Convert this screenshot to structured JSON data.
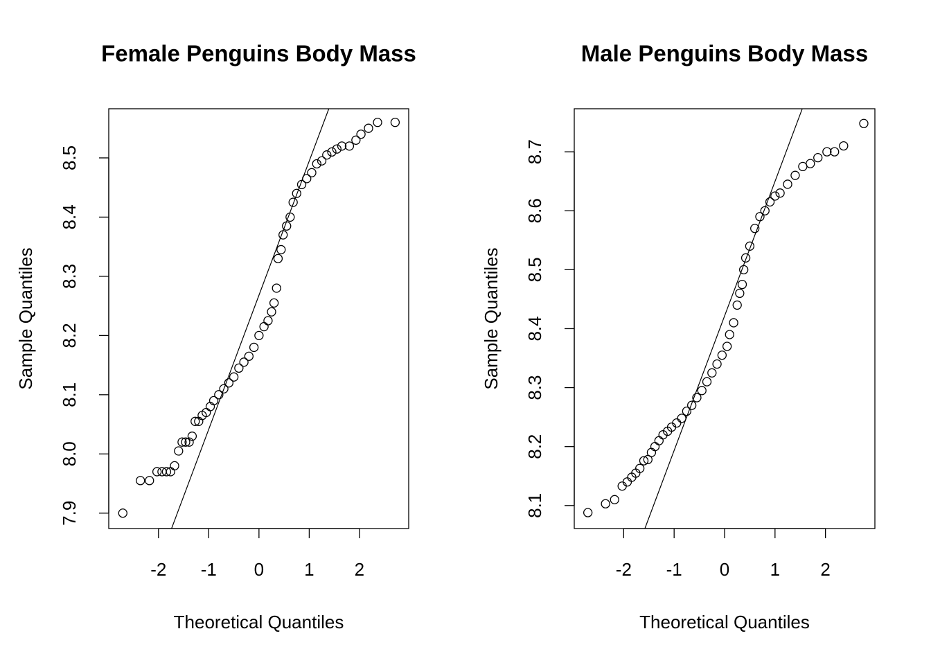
{
  "chart_data": [
    {
      "type": "scatter",
      "title": "Female Penguins Body Mass",
      "xlabel": "Theoretical Quantiles",
      "ylabel": "Sample Quantiles",
      "color": "#000000",
      "xlim": [
        -2.99,
        2.98
      ],
      "ylim": [
        7.874,
        8.583
      ],
      "xticks": [
        -2,
        -1,
        0,
        1,
        2
      ],
      "yticks": [
        7.9,
        {
          "value": 8,
          "label": "8.0"
        },
        8.1,
        8.2,
        8.3,
        8.4,
        8.5
      ],
      "x": [
        -2.71,
        -2.36,
        -2.18,
        -2.03,
        -1.93,
        -1.84,
        -1.76,
        -1.68,
        -1.6,
        -1.53,
        -1.46,
        -1.39,
        -1.33,
        -1.27,
        -1.2,
        -1.13,
        -1.05,
        -0.97,
        -0.9,
        -0.8,
        -0.7,
        -0.6,
        -0.5,
        -0.4,
        -0.3,
        -0.2,
        -0.1,
        0,
        0.1,
        0.18,
        0.25,
        0.3,
        0.35,
        0.38,
        0.44,
        0.48,
        0.55,
        0.62,
        0.68,
        0.75,
        0.85,
        0.95,
        1.05,
        1.15,
        1.25,
        1.35,
        1.45,
        1.55,
        1.65,
        1.8,
        1.93,
        2.03,
        2.18,
        2.36,
        2.71
      ],
      "y": [
        7.9,
        7.955,
        7.955,
        7.97,
        7.97,
        7.97,
        7.97,
        7.98,
        8.005,
        8.02,
        8.02,
        8.02,
        8.03,
        8.055,
        8.055,
        8.065,
        8.07,
        8.08,
        8.09,
        8.1,
        8.11,
        8.12,
        8.13,
        8.145,
        8.155,
        8.165,
        8.18,
        8.2,
        8.215,
        8.225,
        8.24,
        8.255,
        8.28,
        8.33,
        8.345,
        8.37,
        8.385,
        8.4,
        8.425,
        8.44,
        8.455,
        8.465,
        8.475,
        8.49,
        8.495,
        8.505,
        8.51,
        8.515,
        8.52,
        8.52,
        8.53,
        8.54,
        8.55,
        8.56,
        8.56
      ],
      "reference_line": {
        "x": [
          -1.74,
          1.39
        ],
        "y": [
          7.874,
          8.583
        ]
      }
    },
    {
      "type": "scatter",
      "title": "Male Penguins Body Mass",
      "xlabel": "Theoretical Quantiles",
      "ylabel": "Sample Quantiles",
      "color": "#000000",
      "xlim": [
        -2.98,
        2.98
      ],
      "ylim": [
        8.061,
        8.773
      ],
      "xticks": [
        -2,
        -1,
        0,
        1,
        2
      ],
      "yticks": [
        8.1,
        8.2,
        8.3,
        8.4,
        8.5,
        8.6,
        8.7
      ],
      "x": [
        -2.71,
        -2.36,
        -2.18,
        -2.03,
        -1.93,
        -1.84,
        -1.76,
        -1.68,
        -1.6,
        -1.52,
        -1.45,
        -1.38,
        -1.3,
        -1.22,
        -1.13,
        -1.05,
        -0.95,
        -0.85,
        -0.75,
        -0.65,
        -0.55,
        -0.45,
        -0.35,
        -0.25,
        -0.15,
        -0.05,
        0.05,
        0.1,
        0.18,
        0.25,
        0.3,
        0.35,
        0.38,
        0.42,
        0.5,
        0.6,
        0.7,
        0.8,
        0.9,
        1,
        1.1,
        1.25,
        1.4,
        1.55,
        1.7,
        1.85,
        2.03,
        2.18,
        2.36,
        2.76
      ],
      "y": [
        8.088,
        8.103,
        8.11,
        8.133,
        8.14,
        8.148,
        8.155,
        8.163,
        8.176,
        8.178,
        8.19,
        8.2,
        8.21,
        8.22,
        8.226,
        8.233,
        8.24,
        8.248,
        8.26,
        8.27,
        8.283,
        8.295,
        8.31,
        8.325,
        8.34,
        8.355,
        8.37,
        8.39,
        8.41,
        8.44,
        8.46,
        8.475,
        8.5,
        8.52,
        8.54,
        8.57,
        8.59,
        8.6,
        8.615,
        8.625,
        8.63,
        8.645,
        8.66,
        8.675,
        8.68,
        8.69,
        8.7,
        8.7,
        8.71,
        8.748
      ],
      "reference_line": {
        "x": [
          -1.58,
          1.54
        ],
        "y": [
          8.061,
          8.773
        ]
      }
    }
  ]
}
